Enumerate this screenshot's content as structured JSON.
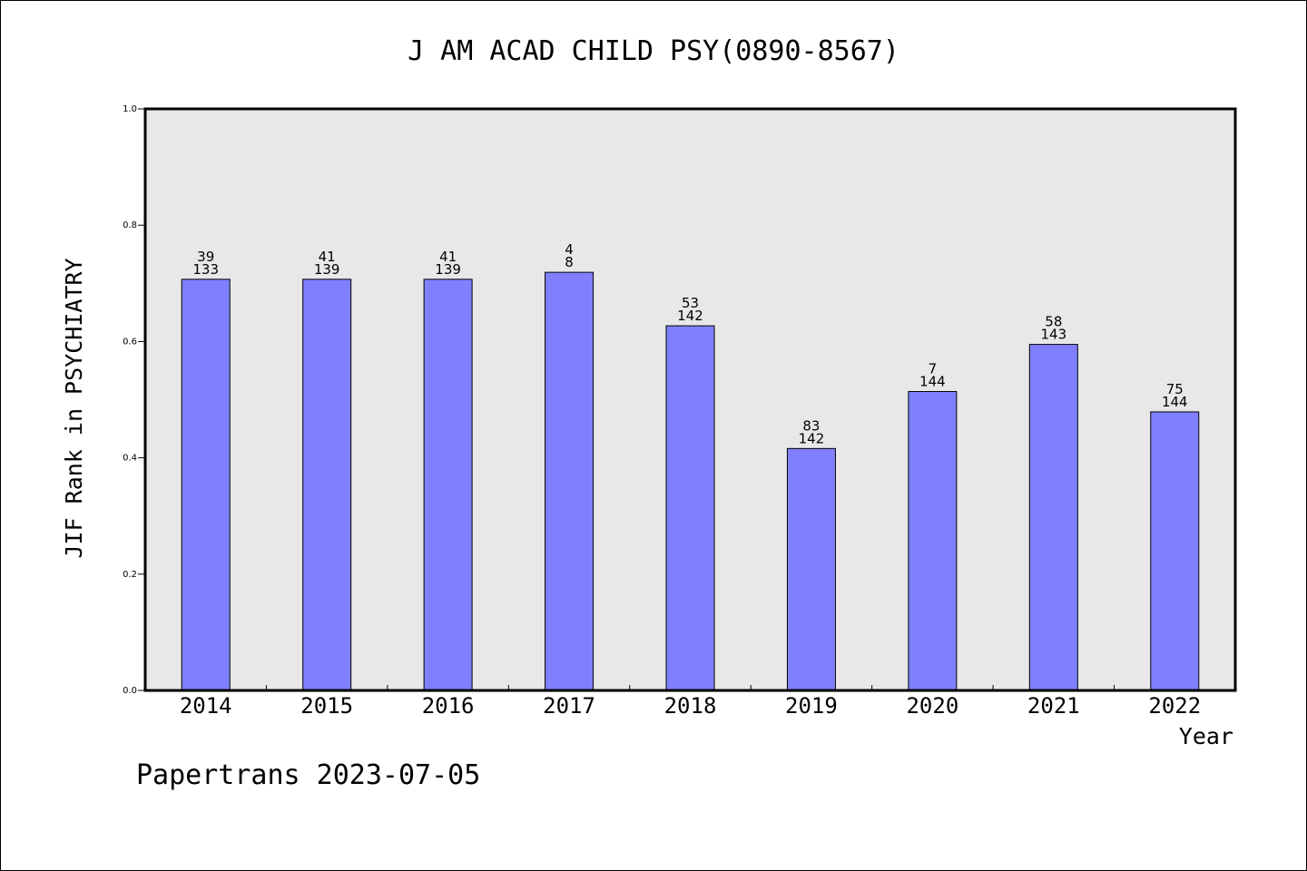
{
  "chart_data": {
    "type": "bar",
    "title": "J AM ACAD CHILD PSY(0890-8567)",
    "xlabel": "Year",
    "ylabel": "JIF Rank in PSYCHIATRY",
    "ylim": [
      0,
      1.0
    ],
    "yticks": [
      "0.0",
      "0.2",
      "0.4",
      "0.6",
      "0.8",
      "1.0"
    ],
    "grid": false,
    "categories": [
      "2014",
      "2015",
      "2016",
      "2017",
      "2018",
      "2019",
      "2020",
      "2021",
      "2022"
    ],
    "values": [
      0.707,
      0.707,
      0.707,
      0.719,
      0.627,
      0.416,
      0.514,
      0.595,
      0.479
    ],
    "labels_top": [
      "39",
      "41",
      "41",
      "4",
      "53",
      "83",
      "7",
      "58",
      "75"
    ],
    "labels_bottom": [
      "133",
      "139",
      "139",
      "8",
      "142",
      "142",
      "144",
      "143",
      "144"
    ],
    "colors": {
      "bar": "#8080ff",
      "plot_bg": "#e8e8e8",
      "frame": "#000000"
    }
  },
  "footer": "Papertrans 2023-07-05"
}
